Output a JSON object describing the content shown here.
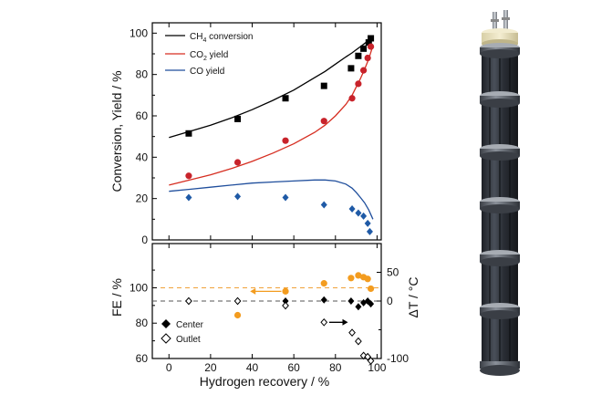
{
  "chart_data": [
    {
      "type": "line",
      "ylabel": "Conversion, Yield / %",
      "xlim": [
        -8,
        102
      ],
      "ylim": [
        0,
        105
      ],
      "xticks": [
        0,
        20,
        40,
        60,
        80,
        100
      ],
      "yticks": [
        0,
        20,
        40,
        60,
        80,
        100
      ],
      "legend_position": "top-left",
      "series": [
        {
          "name": "CH4 conversion",
          "name_main": "CH",
          "name_sub": "4",
          "name_rest": " conversion",
          "kind": "model-line",
          "color": "#000000",
          "x": [
            0,
            10,
            20,
            30,
            40,
            50,
            60,
            70,
            75,
            80,
            85,
            88,
            90,
            92,
            94,
            96,
            98
          ],
          "y": [
            49.5,
            52.5,
            55.5,
            59,
            63,
            67.5,
            72.5,
            78.5,
            81.5,
            85,
            88.5,
            90.5,
            92,
            93.5,
            95,
            96.5,
            98
          ]
        },
        {
          "name": "CO2 yield",
          "name_main": "CO",
          "name_sub": "2",
          "name_rest": " yield",
          "kind": "model-line",
          "color": "#d62d20",
          "x": [
            0,
            10,
            20,
            30,
            40,
            50,
            60,
            70,
            75,
            80,
            85,
            88,
            90,
            92,
            94,
            96,
            98
          ],
          "y": [
            26.5,
            29,
            31.5,
            34.5,
            38,
            42,
            46.5,
            52,
            55.5,
            60,
            65.5,
            70,
            74,
            78,
            82.5,
            87.5,
            94
          ]
        },
        {
          "name": "CO yield",
          "name_main": "CO yield",
          "name_sub": "",
          "name_rest": "",
          "kind": "model-line",
          "color": "#1f4e9c",
          "x": [
            0,
            10,
            20,
            30,
            40,
            50,
            60,
            70,
            75,
            80,
            85,
            88,
            90,
            92,
            94,
            96,
            98
          ],
          "y": [
            23.5,
            24.5,
            25.5,
            26.5,
            27.5,
            28,
            28.5,
            29,
            29,
            28.5,
            27,
            25,
            23,
            20.5,
            18,
            14.5,
            10
          ]
        },
        {
          "kind": "points",
          "marker": "square",
          "color": "#000000",
          "x": [
            9.5,
            33,
            56,
            74.5,
            87.5,
            91,
            93.5,
            96,
            97
          ],
          "y": [
            51.5,
            58.5,
            68.5,
            74.5,
            83,
            89,
            92.5,
            95.5,
            97.5
          ]
        },
        {
          "kind": "points",
          "marker": "circle",
          "color": "#c8232b",
          "x": [
            9.5,
            33,
            56,
            74.5,
            88,
            91,
            93.5,
            95.5,
            97
          ],
          "y": [
            31,
            37.5,
            48,
            57.5,
            68.5,
            75.5,
            82,
            88,
            93.5
          ]
        },
        {
          "kind": "points",
          "marker": "diamond",
          "color": "#1f5aa6",
          "x": [
            9.5,
            33,
            56,
            74.5,
            88,
            91,
            93.5,
            95.5,
            96.5
          ],
          "y": [
            20.5,
            21,
            20.5,
            17,
            15,
            13,
            11.5,
            8,
            4
          ]
        }
      ]
    },
    {
      "type": "scatter",
      "xlabel": "Hydrogen recovery / %",
      "ylabel": "FE / %",
      "ylabel_right_pre": "ΔT",
      "ylabel_right_italic": "T",
      "ylabel_right_post": " / °C",
      "xlim": [
        -8,
        102
      ],
      "ylim": [
        60,
        125
      ],
      "ylim_right": [
        -100,
        100
      ],
      "xticks": [
        0,
        20,
        40,
        60,
        80,
        100
      ],
      "xtick_labels": [
        "0",
        "20",
        "40",
        "60",
        "80",
        "100"
      ],
      "yticks": [
        60,
        80,
        100
      ],
      "yticks_right": [
        -100,
        0,
        50
      ],
      "ytick_labels_right": [
        "-100",
        "0",
        "50"
      ],
      "reference_lines": [
        {
          "axis": "left",
          "y": 100,
          "style": "dashed",
          "color": "#f0a23a"
        },
        {
          "axis": "right",
          "y": 0,
          "style": "dashed",
          "color": "#555555"
        }
      ],
      "legend_position": "bottom-left",
      "series": [
        {
          "name": "FE",
          "marker": "circle",
          "color": "#f39c1f",
          "axis": "left",
          "x": [
            33,
            56,
            74.5,
            87.5,
            91,
            93.5,
            95.5,
            97
          ],
          "y": [
            84.5,
            98,
            102.5,
            105.5,
            107,
            106,
            105,
            99.5
          ]
        },
        {
          "name": "Center",
          "marker": "filled-diamond",
          "color": "#000000",
          "axis": "right",
          "x": [
            9.5,
            33,
            56,
            74.5,
            87.5,
            91,
            93.5,
            95.5,
            97
          ],
          "y": [
            0,
            0,
            0,
            2,
            0,
            -10,
            -3,
            0,
            -5
          ]
        },
        {
          "name": "Outlet",
          "marker": "open-diamond",
          "color": "#000000",
          "axis": "right",
          "x": [
            9.5,
            33,
            56,
            74.5,
            88,
            91,
            93.5,
            95.5,
            97
          ],
          "y": [
            0,
            0,
            -8,
            -37,
            -55,
            -70,
            -95,
            -97,
            -104
          ]
        }
      ],
      "arrows": [
        {
          "points_to": "left",
          "color": "#f39c1f"
        },
        {
          "points_to": "right",
          "color": "#000000"
        }
      ]
    }
  ]
}
